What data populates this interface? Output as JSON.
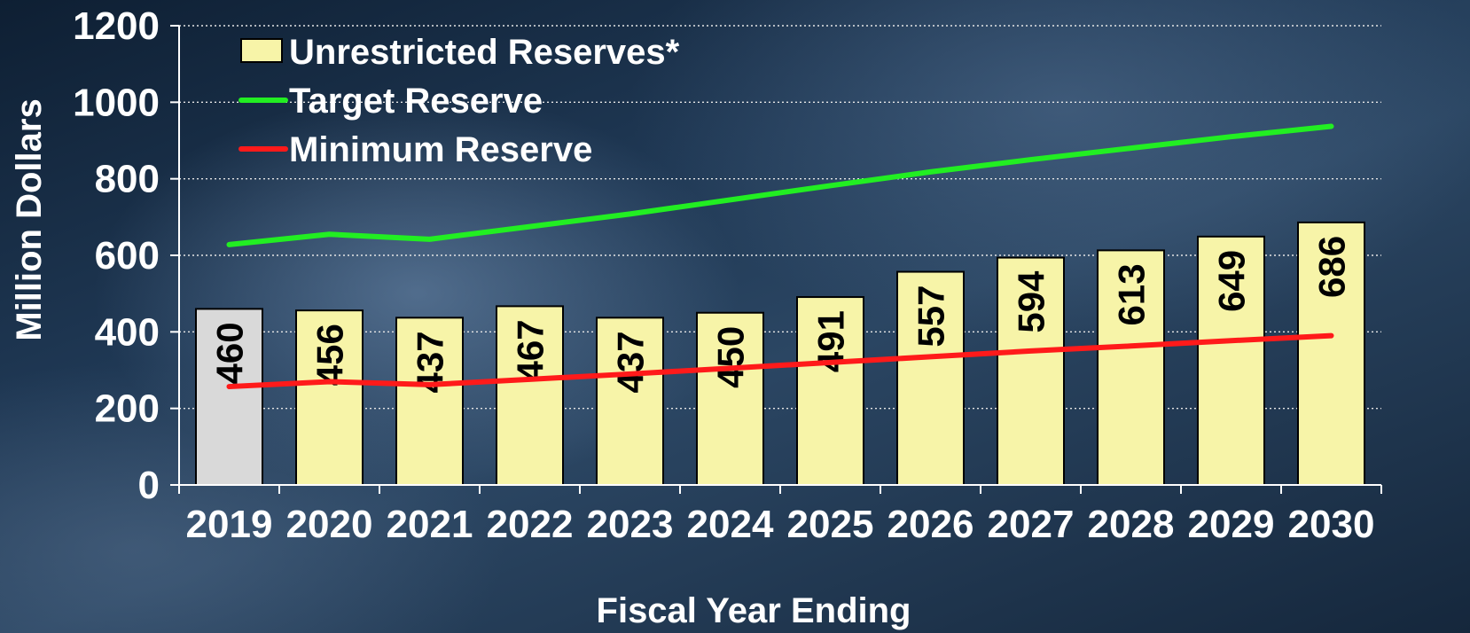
{
  "chart_data": {
    "type": "bar",
    "xlabel": "Fiscal Year Ending",
    "ylabel": "Million Dollars",
    "ylim": [
      0,
      1200
    ],
    "yticks": [
      0,
      200,
      400,
      600,
      800,
      1000,
      1200
    ],
    "grid": "horizontal dotted",
    "legend_position": "top-left",
    "categories": [
      "2019",
      "2020",
      "2021",
      "2022",
      "2023",
      "2024",
      "2025",
      "2026",
      "2027",
      "2028",
      "2029",
      "2030"
    ],
    "series": [
      {
        "name": "Unrestricted Reserves*",
        "type": "bar",
        "values": [
          460,
          456,
          437,
          467,
          437,
          450,
          491,
          557,
          594,
          613,
          649,
          686
        ],
        "labels": [
          "460",
          "456",
          "437",
          "467",
          "437",
          "450",
          "491",
          "557",
          "594",
          "613",
          "649",
          "686"
        ],
        "color": "#f7f4a8",
        "highlight_color": "#d9d9d9",
        "highlight_index": 0
      },
      {
        "name": "Target Reserve",
        "type": "line",
        "values": [
          628,
          655,
          642,
          675,
          708,
          745,
          782,
          818,
          850,
          880,
          910,
          937
        ],
        "color": "#22ee22"
      },
      {
        "name": "Minimum Reserve",
        "type": "line",
        "values": [
          257,
          270,
          262,
          276,
          290,
          305,
          320,
          335,
          350,
          363,
          377,
          390
        ],
        "color": "#ff1a1a"
      }
    ]
  }
}
